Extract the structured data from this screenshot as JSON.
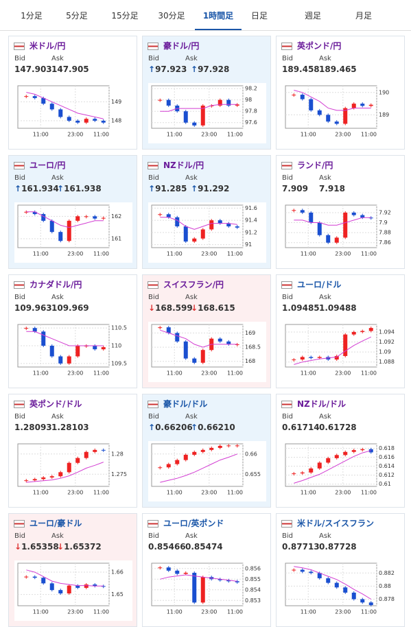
{
  "tabs": [
    "1分足",
    "5分足",
    "15分足",
    "30分足",
    "1時間足",
    "日足",
    "週足",
    "月足"
  ],
  "active_tab": 4,
  "bid_label": "Bid",
  "ask_label": "Ask",
  "x_labels": [
    "11:00",
    "23:00",
    "11:00"
  ],
  "cards": [
    {
      "title": "米ドル/円",
      "title_color": "#6a1b9a",
      "bg": "white",
      "bid_arrow": null,
      "bid": "147.903",
      "ask_arrow": null,
      "ask": "147.905",
      "ylim": [
        147.6,
        149.85
      ],
      "yticks": [
        149,
        148
      ],
      "closes": [
        149.3,
        149.2,
        148.9,
        148.6,
        148.2,
        148.0,
        147.9,
        148.1,
        148.0,
        147.9
      ],
      "ma": [
        149.5,
        149.4,
        149.2,
        149.0,
        148.8,
        148.6,
        148.4,
        148.3,
        148.2,
        148.1
      ]
    },
    {
      "title": "豪ドル/円",
      "title_color": "#6a1b9a",
      "bg": "up",
      "bid_arrow": "↑",
      "bid": "97.923",
      "ask_arrow": "↑",
      "ask": "97.928",
      "ylim": [
        97.5,
        98.25
      ],
      "yticks": [
        98.2,
        98,
        97.8,
        97.6
      ],
      "closes": [
        98.0,
        97.9,
        97.8,
        97.6,
        97.55,
        97.9,
        97.9,
        98.0,
        97.9,
        97.92
      ],
      "ma": [
        97.8,
        97.8,
        97.85,
        97.85,
        97.85,
        97.85,
        97.9,
        97.92,
        97.92,
        97.92
      ]
    },
    {
      "title": "英ポンド/円",
      "title_color": "#6a1b9a",
      "bg": "white",
      "bid_arrow": null,
      "bid": "189.458",
      "ask_arrow": null,
      "ask": "189.465",
      "ylim": [
        188.4,
        190.3
      ],
      "yticks": [
        190,
        189
      ],
      "closes": [
        189.9,
        189.7,
        189.2,
        189.0,
        188.7,
        188.6,
        189.3,
        189.5,
        189.4,
        189.45
      ],
      "ma": [
        190.1,
        190.0,
        189.8,
        189.6,
        189.3,
        189.2,
        189.2,
        189.3,
        189.3,
        189.3
      ]
    },
    {
      "title": "ユーロ/円",
      "title_color": "#6a1b9a",
      "bg": "up",
      "bid_arrow": "↑",
      "bid": "161.934",
      "ask_arrow": "↑",
      "ask": "161.938",
      "ylim": [
        160.6,
        162.5
      ],
      "yticks": [
        162,
        161
      ],
      "closes": [
        162.2,
        162.1,
        161.8,
        161.3,
        160.9,
        161.8,
        162.0,
        162.0,
        161.9,
        161.93
      ],
      "ma": [
        162.2,
        162.2,
        162.0,
        161.8,
        161.6,
        161.5,
        161.6,
        161.7,
        161.8,
        161.8
      ]
    },
    {
      "title": "NZドル/円",
      "title_color": "#6a1b9a",
      "bg": "up",
      "bid_arrow": "↑",
      "bid": "91.285",
      "ask_arrow": "↑",
      "ask": "91.292",
      "ylim": [
        90.95,
        91.65
      ],
      "yticks": [
        91.6,
        91.4,
        91.2,
        91
      ],
      "closes": [
        91.5,
        91.45,
        91.3,
        91.05,
        91.1,
        91.25,
        91.4,
        91.35,
        91.3,
        91.28
      ],
      "ma": [
        91.45,
        91.45,
        91.4,
        91.3,
        91.25,
        91.3,
        91.35,
        91.35,
        91.35,
        91.33
      ]
    },
    {
      "title": "ランド/円",
      "title_color": "#6a1b9a",
      "bg": "white",
      "bid_arrow": null,
      "bid": "7.909",
      "ask_arrow": null,
      "ask": "7.918",
      "ylim": [
        7.85,
        7.935
      ],
      "yticks": [
        7.92,
        7.9,
        7.88,
        7.86
      ],
      "closes": [
        7.925,
        7.92,
        7.9,
        7.875,
        7.86,
        7.87,
        7.92,
        7.915,
        7.91,
        7.909
      ],
      "ma": [
        7.905,
        7.905,
        7.9,
        7.9,
        7.895,
        7.895,
        7.9,
        7.905,
        7.91,
        7.91
      ]
    },
    {
      "title": "カナダドル/円",
      "title_color": "#6a1b9a",
      "bg": "white",
      "bid_arrow": null,
      "bid": "109.963",
      "ask_arrow": null,
      "ask": "109.969",
      "ylim": [
        109.4,
        110.6
      ],
      "yticks": [
        110.5,
        110,
        109.5
      ],
      "closes": [
        110.5,
        110.4,
        110.0,
        109.7,
        109.5,
        109.7,
        110.0,
        110.0,
        109.9,
        109.96
      ],
      "ma": [
        110.4,
        110.4,
        110.3,
        110.2,
        110.1,
        110.0,
        110.0,
        110.0,
        110.0,
        110.0
      ]
    },
    {
      "title": "スイスフラン/円",
      "title_color": "#6a1b9a",
      "bg": "down",
      "bid_arrow": "↓",
      "bid": "168.599",
      "ask_arrow": "↓",
      "ask": "168.615",
      "ylim": [
        167.8,
        169.3
      ],
      "yticks": [
        169,
        168.5,
        168
      ],
      "closes": [
        169.2,
        169.0,
        168.7,
        168.1,
        167.95,
        168.4,
        168.8,
        168.7,
        168.6,
        168.6
      ],
      "ma": [
        169.1,
        169.0,
        168.9,
        168.8,
        168.6,
        168.5,
        168.6,
        168.6,
        168.6,
        168.6
      ]
    },
    {
      "title": "ユーロ/ドル",
      "title_color": "#1a56a8",
      "bg": "white",
      "bid_arrow": null,
      "bid": "1.09485",
      "ask_arrow": null,
      "ask": "1.09488",
      "ylim": [
        1.087,
        1.0955
      ],
      "yticks": [
        1.094,
        1.092,
        1.09,
        1.088
      ],
      "closes": [
        1.0885,
        1.089,
        1.0888,
        1.089,
        1.0885,
        1.0892,
        1.0935,
        1.094,
        1.0942,
        1.0948
      ],
      "ma": [
        1.0875,
        1.088,
        1.0883,
        1.0886,
        1.0888,
        1.089,
        1.0902,
        1.0913,
        1.0922,
        1.093
      ]
    },
    {
      "title": "英ポンド/ドル",
      "title_color": "#6a1b9a",
      "bg": "white",
      "bid_arrow": null,
      "bid": "1.28093",
      "ask_arrow": null,
      "ask": "1.28103",
      "ylim": [
        1.272,
        1.2825
      ],
      "yticks": [
        1.28,
        1.275
      ],
      "closes": [
        1.2735,
        1.2738,
        1.2742,
        1.2745,
        1.2755,
        1.2778,
        1.279,
        1.2805,
        1.281,
        1.2809
      ],
      "ma": [
        1.273,
        1.2732,
        1.2734,
        1.2736,
        1.274,
        1.2746,
        1.2755,
        1.2765,
        1.2772,
        1.278
      ]
    },
    {
      "title": "豪ドル/ドル",
      "title_color": "#1a56a8",
      "bg": "up",
      "bid_arrow": "↑",
      "bid": "0.66206",
      "ask_arrow": "↑",
      "ask": "0.66210",
      "ylim": [
        0.652,
        0.6625
      ],
      "yticks": [
        0.66,
        0.655
      ],
      "closes": [
        0.6567,
        0.6575,
        0.6585,
        0.6598,
        0.6605,
        0.661,
        0.6615,
        0.662,
        0.6621,
        0.6621
      ],
      "ma": [
        0.653,
        0.6535,
        0.654,
        0.6547,
        0.6555,
        0.6565,
        0.6575,
        0.6585,
        0.6592,
        0.66
      ]
    },
    {
      "title": "NZドル/ドル",
      "title_color": "#6a1b9a",
      "bg": "white",
      "bid_arrow": null,
      "bid": "0.61714",
      "ask_arrow": null,
      "ask": "0.61728",
      "ylim": [
        0.6095,
        0.619
      ],
      "yticks": [
        0.618,
        0.616,
        0.614,
        0.612,
        0.61
      ],
      "closes": [
        0.6124,
        0.6126,
        0.6135,
        0.6148,
        0.6158,
        0.6165,
        0.6172,
        0.6176,
        0.6178,
        0.6171
      ],
      "ma": [
        0.6102,
        0.6108,
        0.6115,
        0.6122,
        0.6132,
        0.6142,
        0.6152,
        0.6162,
        0.617,
        0.6175
      ]
    },
    {
      "title": "ユーロ/豪ドル",
      "title_color": "#1a56a8",
      "bg": "down",
      "bid_arrow": "↓",
      "bid": "1.65358",
      "ask_arrow": "↓",
      "ask": "1.65372",
      "ylim": [
        1.645,
        1.664
      ],
      "yticks": [
        1.66,
        1.65
      ],
      "closes": [
        1.658,
        1.6575,
        1.655,
        1.652,
        1.6505,
        1.654,
        1.653,
        1.6545,
        1.6538,
        1.6536
      ],
      "ma": [
        1.661,
        1.66,
        1.658,
        1.656,
        1.655,
        1.6545,
        1.654,
        1.654,
        1.6538,
        1.6538
      ]
    },
    {
      "title": "ユーロ/英ポンド",
      "title_color": "#1a56a8",
      "bg": "white",
      "bid_arrow": null,
      "bid": "0.85466",
      "ask_arrow": null,
      "ask": "0.85474",
      "ylim": [
        0.8525,
        0.8565
      ],
      "yticks": [
        0.856,
        0.855,
        0.854,
        0.853
      ],
      "closes": [
        0.8561,
        0.8558,
        0.8555,
        0.8556,
        0.8528,
        0.8552,
        0.855,
        0.8549,
        0.8548,
        0.8547
      ],
      "ma": [
        0.855,
        0.8552,
        0.8553,
        0.8554,
        0.8553,
        0.8552,
        0.8551,
        0.855,
        0.8549,
        0.8548
      ]
    },
    {
      "title": "米ドル/スイスフラン",
      "title_color": "#1a56a8",
      "bg": "white",
      "bid_arrow": null,
      "bid": "0.87713",
      "ask_arrow": null,
      "ask": "0.87728",
      "ylim": [
        0.877,
        0.8835
      ],
      "yticks": [
        0.882,
        0.88,
        0.878
      ],
      "closes": [
        0.8825,
        0.8822,
        0.882,
        0.8812,
        0.8805,
        0.8798,
        0.879,
        0.878,
        0.8775,
        0.8771
      ],
      "ma": [
        0.883,
        0.8828,
        0.8825,
        0.882,
        0.8815,
        0.881,
        0.8803,
        0.8795,
        0.8788,
        0.878
      ]
    }
  ]
}
